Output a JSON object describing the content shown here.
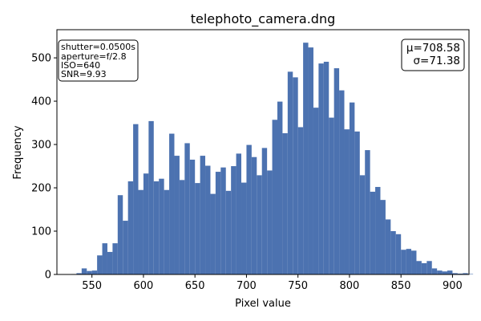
{
  "chart_data": {
    "type": "bar",
    "title": "telephoto_camera.dng",
    "xlabel": "Pixel value",
    "ylabel": "Frequency",
    "xlim": [
      516,
      916
    ],
    "ylim": [
      0,
      565
    ],
    "xticks": [
      550,
      600,
      650,
      700,
      750,
      800,
      850,
      900
    ],
    "yticks": [
      0,
      100,
      200,
      300,
      400,
      500
    ],
    "bar_color": "#4c72b0",
    "bins": {
      "start": 525.0,
      "width": 5.0,
      "values": [
        0,
        1,
        3,
        14,
        8,
        9,
        44,
        72,
        52,
        72,
        183,
        124,
        215,
        347,
        195,
        233,
        354,
        215,
        221,
        195,
        325,
        274,
        218,
        303,
        265,
        211,
        274,
        251,
        186,
        237,
        247,
        193,
        250,
        279,
        212,
        299,
        271,
        229,
        292,
        240,
        357,
        399,
        326,
        468,
        455,
        340,
        535,
        524,
        385,
        487,
        491,
        362,
        476,
        425,
        335,
        397,
        330,
        229,
        287,
        191,
        202,
        172,
        127,
        100,
        93,
        57,
        59,
        55,
        31,
        26,
        31,
        14,
        9,
        7,
        9,
        3,
        2,
        3,
        1
      ]
    },
    "annotation_left": [
      "shutter=0.0500s",
      "aperture=f/2.8",
      "ISO=640",
      "SNR=9.93"
    ],
    "annotation_right": [
      "μ=708.58",
      "σ=71.38"
    ]
  }
}
